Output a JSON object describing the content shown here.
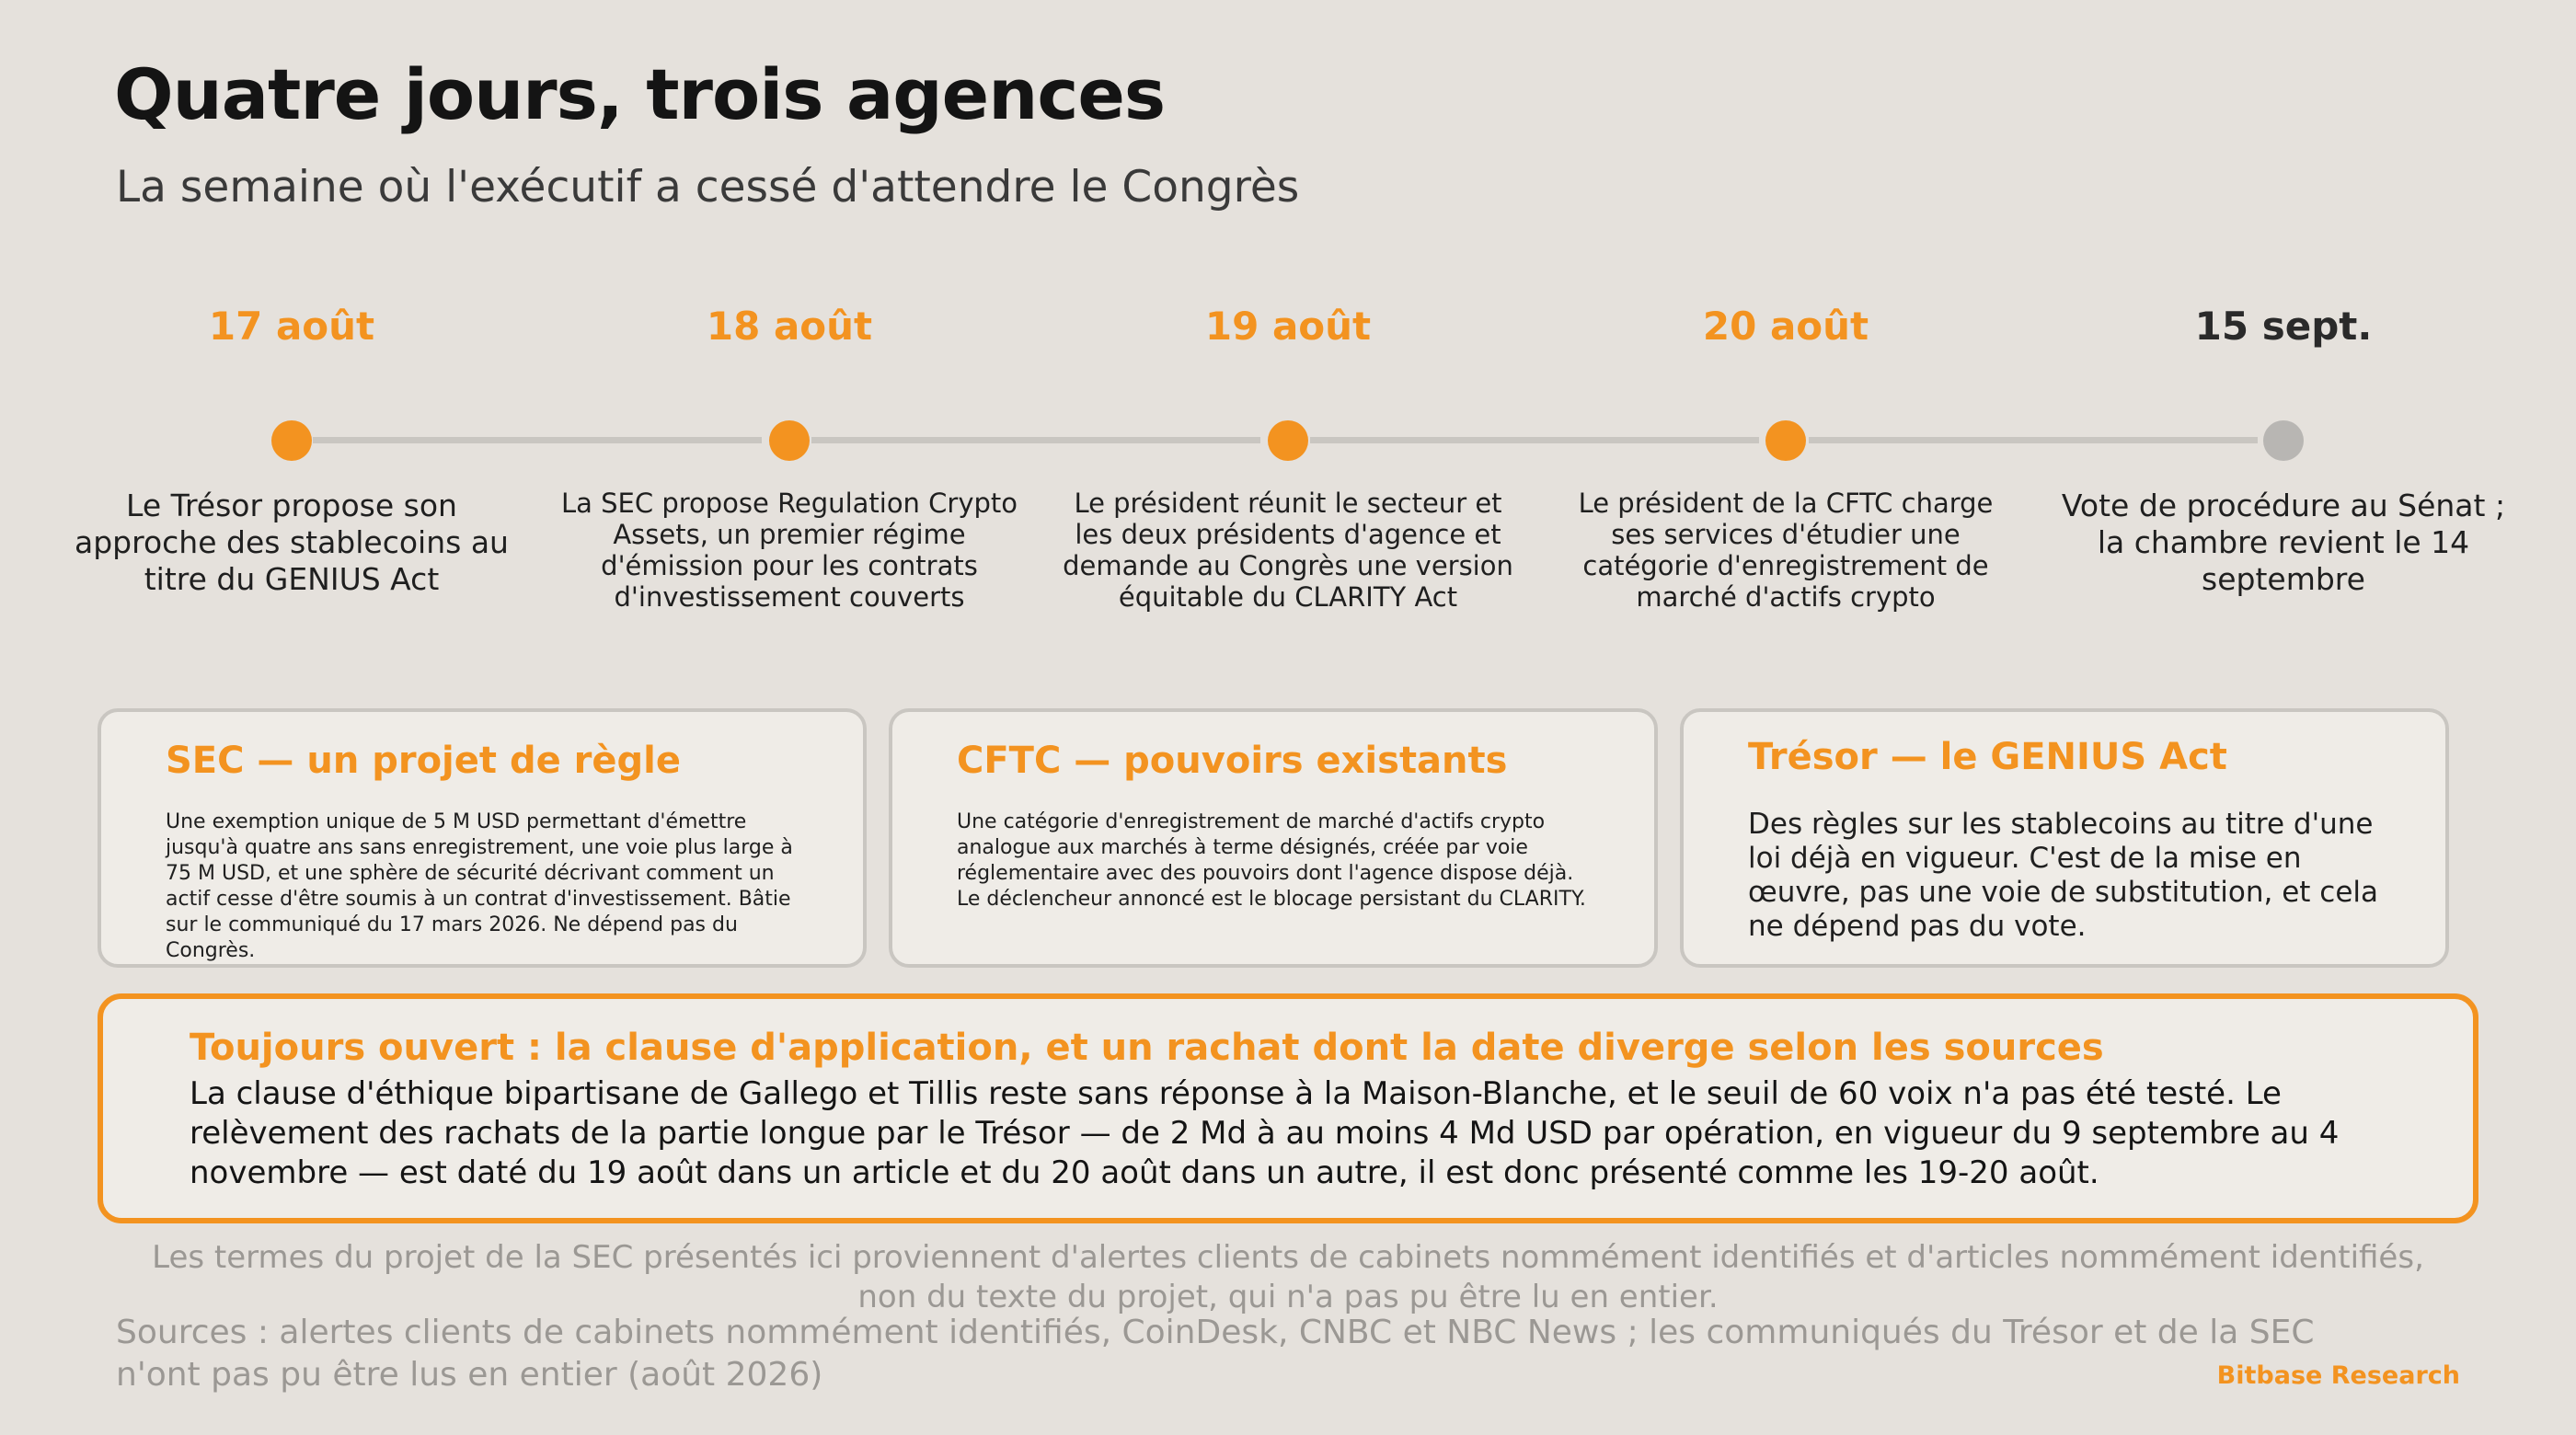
{
  "header": {
    "title": "Quatre jours, trois agences",
    "subtitle": "La semaine où l'exécutif a cessé d'attendre le Congrès"
  },
  "timeline": [
    {
      "date": "17 août",
      "text": "Le Trésor propose son approche des stablecoins au titre du GENIUS Act",
      "status": "done"
    },
    {
      "date": "18 août",
      "text": "La SEC propose Regulation Crypto Assets, un premier régime d'émission pour les contrats d'investissement couverts",
      "status": "done"
    },
    {
      "date": "19 août",
      "text": "Le président réunit le secteur et les deux présidents d'agence et demande au Congrès une version équitable du CLARITY Act",
      "status": "done"
    },
    {
      "date": "20 août",
      "text": "Le président de la CFTC charge ses services d'étudier une catégorie d'enregistrement de marché d'actifs crypto",
      "status": "done"
    },
    {
      "date": "15 sept.",
      "text": "Vote de procédure au Sénat ; la chambre revient le 14 septembre",
      "status": "pending"
    }
  ],
  "cards": [
    {
      "title": "SEC — un projet de règle",
      "body": "Une exemption unique de 5 M USD permettant d'émettre jusqu'à quatre ans sans enregistrement, une voie plus large à 75 M USD, et une sphère de sécurité décrivant comment un actif cesse d'être soumis à un contrat d'investissement. Bâtie sur le communiqué du 17 mars 2026. Ne dépend pas du Congrès."
    },
    {
      "title": "CFTC — pouvoirs existants",
      "body": "Une catégorie d'enregistrement de marché d'actifs crypto analogue aux marchés à terme désignés, créée par voie réglementaire avec des pouvoirs dont l'agence dispose déjà. Le déclencheur annoncé est le blocage persistant du CLARITY."
    },
    {
      "title": "Trésor — le GENIUS Act",
      "body": "Des règles sur les stablecoins au titre d'une loi déjà en vigueur. C'est de la mise en œuvre, pas une voie de substitution, et cela ne dépend pas du vote."
    }
  ],
  "open_issue": {
    "title": "Toujours ouvert : la clause d'application, et un rachat dont la date diverge selon les sources",
    "body": "La clause d'éthique bipartisane de Gallego et Tillis reste sans réponse à la Maison-Blanche, et le seuil de 60 voix n'a pas été testé. Le relèvement des rachats de la partie longue par le Trésor — de 2 Md à au moins 4 Md USD par opération, en vigueur du 9 septembre au 4 novembre — est daté du 19 août dans un article et du 20 août dans un autre, il est donc présenté comme les 19-20 août."
  },
  "footer": {
    "note": "Les termes du projet de la SEC présentés ici proviennent d'alertes clients de cabinets nommément identifiés et d'articles nommément identifiés, non du texte du projet, qui n'a pas pu être lu en entier.",
    "sources": "Sources : alertes clients de cabinets nommément identifiés, CoinDesk, CNBC et NBC News ; les communiqués du Trésor et de la SEC n'ont pas pu être lus en entier (août 2026)",
    "brand": "Bitbase Research"
  },
  "colors": {
    "accent": "#f39320",
    "pending": "#b8b6b3",
    "pending_text": "#2a2a2a",
    "line": "#c9c6c1",
    "background": "#e5e1dc",
    "card": "#efece7"
  }
}
